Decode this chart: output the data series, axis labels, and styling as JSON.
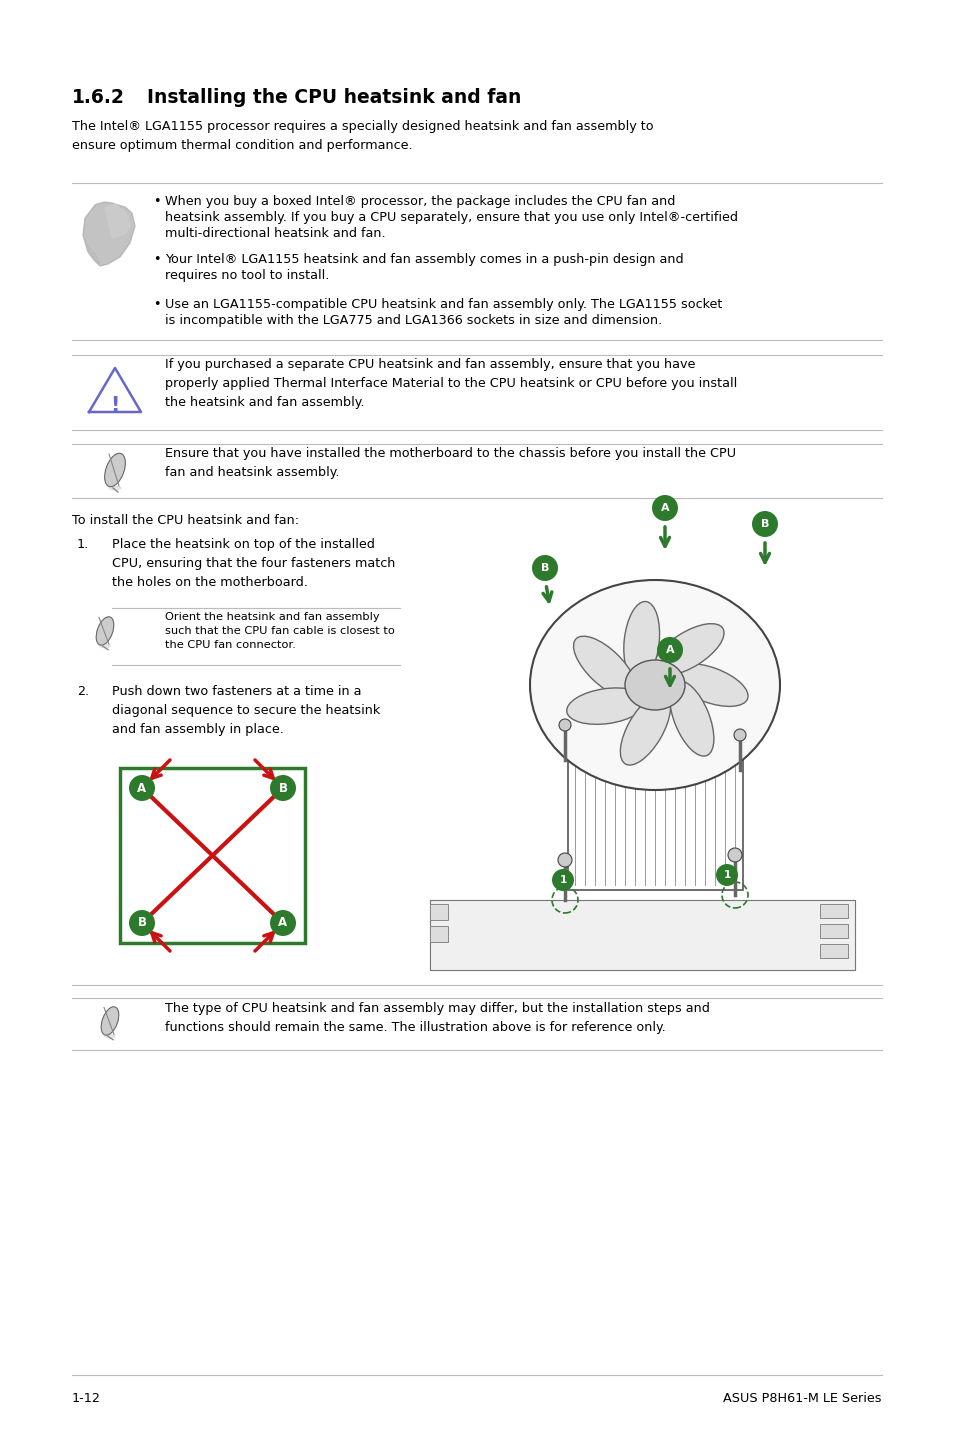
{
  "page_bg": "#ffffff",
  "title_num": "1.6.2",
  "title_text": "Installing the CPU heatsink and fan",
  "intro_text": "The Intel® LGA1155 processor requires a specially designed heatsink and fan assembly to\nensure optimum thermal condition and performance.",
  "section_header_fontsize": 13.5,
  "body_fontsize": 9.2,
  "small_fontsize": 8.2,
  "footer_left": "1-12",
  "footer_right": "ASUS P8H61-M LE Series",
  "bullet1_line1": "When you buy a boxed Intel® processor, the package includes the CPU fan and",
  "bullet1_line2": "heatsink assembly. If you buy a CPU separately, ensure that you use only Intel®-certified",
  "bullet1_line3": "multi-directional heatsink and fan.",
  "bullet2_line1": "Your Intel® LGA1155 heatsink and fan assembly comes in a push-pin design and",
  "bullet2_line2": "requires no tool to install.",
  "bullet3_line1": "Use an LGA1155-compatible CPU heatsink and fan assembly only. The LGA1155 socket",
  "bullet3_line2": "is incompatible with the LGA775 and LGA1366 sockets in size and dimension.",
  "warning_text": "If you purchased a separate CPU heatsink and fan assembly, ensure that you have\nproperly applied Thermal Interface Material to the CPU heatsink or CPU before you install\nthe heatsink and fan assembly.",
  "note1_text": "Ensure that you have installed the motherboard to the chassis before you install the CPU\nfan and heatsink assembly.",
  "install_header": "To install the CPU heatsink and fan:",
  "step1_text": "Place the heatsink on top of the installed\nCPU, ensuring that the four fasteners match\nthe holes on the motherboard.",
  "step1_note": "Orient the heatsink and fan assembly\nsuch that the CPU fan cable is closest to\nthe CPU fan connector.",
  "step2_text": "Push down two fasteners at a time in a\ndiagonal sequence to secure the heatsink\nand fan assembly in place.",
  "note2_text": "The type of CPU heatsink and fan assembly may differ, but the installation steps and\nfunctions should remain the same. The illustration above is for reference only.",
  "line_color": "#bbbbbb",
  "text_color": "#000000",
  "green_color": "#2d7a2d",
  "red_color": "#cc1111",
  "warn_color": "#6666cc",
  "icon_color": "#888888"
}
